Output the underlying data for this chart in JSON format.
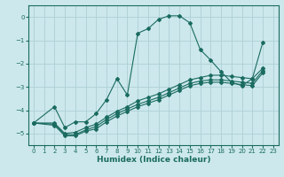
{
  "xlabel": "Humidex (Indice chaleur)",
  "ylabel": "",
  "bg_color": "#cce8ec",
  "grid_color": "#aed0d6",
  "line_color": "#1a6b60",
  "xlim": [
    -0.5,
    23.5
  ],
  "ylim": [
    -5.5,
    0.5
  ],
  "xticks": [
    0,
    1,
    2,
    3,
    4,
    5,
    6,
    7,
    8,
    9,
    10,
    11,
    12,
    13,
    14,
    15,
    16,
    17,
    18,
    19,
    20,
    21,
    22,
    23
  ],
  "yticks": [
    0,
    -1,
    -2,
    -3,
    -4,
    -5
  ],
  "curve1_x": [
    0,
    2,
    3,
    4,
    5,
    6,
    7,
    8,
    9,
    10,
    11,
    12,
    13,
    14,
    15,
    16,
    17,
    18,
    19,
    20,
    21,
    22
  ],
  "curve1_y": [
    -4.55,
    -3.85,
    -4.75,
    -4.5,
    -4.5,
    -4.15,
    -3.55,
    -2.65,
    -3.35,
    -0.7,
    -0.5,
    -0.1,
    0.05,
    0.05,
    -0.25,
    -1.4,
    -1.85,
    -2.35,
    -2.8,
    -2.95,
    -2.65,
    -1.1
  ],
  "curve2_x": [
    0,
    2,
    3,
    4,
    5,
    6,
    7,
    8,
    9,
    10,
    11,
    12,
    13,
    14,
    15,
    16,
    17,
    18,
    19,
    20,
    21,
    22
  ],
  "curve2_y": [
    -4.55,
    -4.55,
    -5.0,
    -4.95,
    -4.75,
    -4.6,
    -4.3,
    -4.05,
    -3.85,
    -3.6,
    -3.45,
    -3.3,
    -3.1,
    -2.9,
    -2.7,
    -2.6,
    -2.5,
    -2.5,
    -2.55,
    -2.6,
    -2.65,
    -2.2
  ],
  "curve3_x": [
    0,
    2,
    3,
    4,
    5,
    6,
    7,
    8,
    9,
    10,
    11,
    12,
    13,
    14,
    15,
    16,
    17,
    18,
    19,
    20,
    21,
    22
  ],
  "curve3_y": [
    -4.55,
    -4.6,
    -5.05,
    -5.05,
    -4.85,
    -4.7,
    -4.4,
    -4.15,
    -3.95,
    -3.75,
    -3.6,
    -3.45,
    -3.25,
    -3.05,
    -2.85,
    -2.75,
    -2.7,
    -2.7,
    -2.75,
    -2.8,
    -2.85,
    -2.3
  ],
  "curve4_x": [
    0,
    2,
    3,
    4,
    5,
    6,
    7,
    8,
    9,
    10,
    11,
    12,
    13,
    14,
    15,
    16,
    17,
    18,
    19,
    20,
    21,
    22
  ],
  "curve4_y": [
    -4.55,
    -4.65,
    -5.1,
    -5.1,
    -4.9,
    -4.8,
    -4.5,
    -4.25,
    -4.05,
    -3.85,
    -3.7,
    -3.55,
    -3.35,
    -3.15,
    -2.95,
    -2.85,
    -2.8,
    -2.8,
    -2.85,
    -2.9,
    -2.95,
    -2.4
  ]
}
